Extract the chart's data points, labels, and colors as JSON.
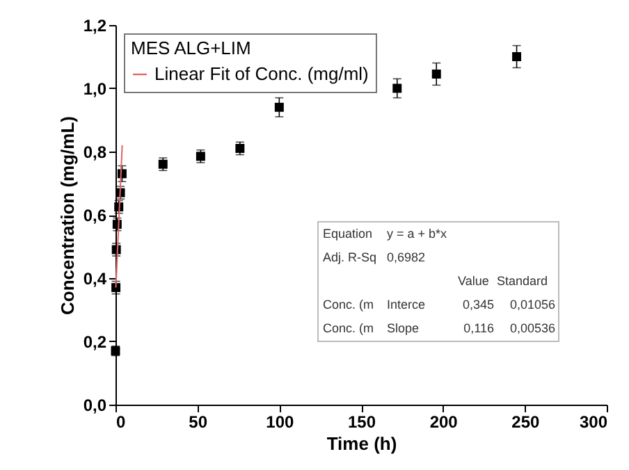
{
  "chart_data": {
    "type": "scatter",
    "xlabel": "Time (h)",
    "ylabel": "Concentration (mg/mL)",
    "legend_title": "MES ALG+LIM",
    "legend": "top left",
    "grid": false,
    "xlim": [
      0,
      300
    ],
    "xticks": [
      0,
      50,
      100,
      150,
      200,
      250,
      300
    ],
    "ylim": [
      0,
      1.2
    ],
    "yticks": [
      {
        "value": 0,
        "label": "0,0"
      },
      {
        "value": 0.2,
        "label": "0,2"
      },
      {
        "value": 0.4,
        "label": "0,4"
      },
      {
        "value": 0.6,
        "label": "0,6"
      },
      {
        "value": 0.8,
        "label": "0,8"
      },
      {
        "value": 1.0,
        "label": "1,0"
      },
      {
        "value": 1.2,
        "label": "1,2"
      }
    ],
    "series": [
      {
        "marker": "square",
        "color": "#000000",
        "x": [
          0,
          0.25,
          0.5,
          1,
          2,
          3,
          4,
          29,
          52,
          76,
          100,
          172,
          196,
          245
        ],
        "values": [
          0.17,
          0.37,
          0.49,
          0.57,
          0.625,
          0.67,
          0.73,
          0.76,
          0.785,
          0.81,
          0.94,
          1.0,
          1.045,
          1.1
        ],
        "errors": [
          0.015,
          0.02,
          0.02,
          0.02,
          0.02,
          0.02,
          0.025,
          0.02,
          0.02,
          0.02,
          0.03,
          0.03,
          0.035,
          0.035
        ]
      },
      {
        "type": "line",
        "name": "Linear Fit of Conc. (mg/ml)",
        "color": "#e06666",
        "x": [
          0.2,
          4.1
        ],
        "values": [
          0.37,
          0.82
        ]
      }
    ],
    "annotations": [
      "Equation",
      "y = a + b*x",
      "Adj. R-Sq",
      "0,6982",
      "Value",
      "Standard",
      "Conc. (m",
      "Interce",
      "0,345",
      "0,01056",
      "Conc. (m",
      "Slope",
      "0,116",
      "0,00536"
    ]
  }
}
